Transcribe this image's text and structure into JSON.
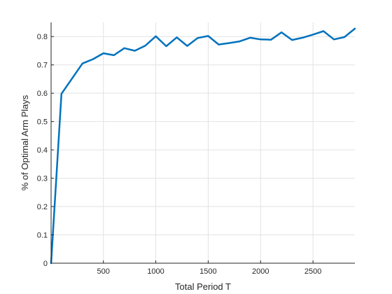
{
  "chart_data": {
    "type": "line",
    "title": "",
    "xlabel": "Total Period T",
    "ylabel": "% of Optimal Arm Plays",
    "xlim": [
      1,
      2900
    ],
    "ylim": [
      0,
      0.85
    ],
    "xticks": [
      500,
      1000,
      1500,
      2000,
      2500
    ],
    "xtick_labels": [
      "500",
      "1000",
      "1500",
      "2000",
      "2500"
    ],
    "yticks": [
      0,
      0.1,
      0.2,
      0.3,
      0.4,
      0.5,
      0.6,
      0.7,
      0.8
    ],
    "ytick_labels": [
      "0",
      "0.1",
      "0.2",
      "0.3",
      "0.4",
      "0.5",
      "0.6",
      "0.7",
      "0.8"
    ],
    "grid": true,
    "legend": "none",
    "series": [
      {
        "color": "#0072BD",
        "x": [
          1,
          100,
          300,
          400,
          500,
          600,
          700,
          800,
          900,
          1000,
          1100,
          1200,
          1300,
          1400,
          1500,
          1600,
          1700,
          1800,
          1900,
          2000,
          2100,
          2200,
          2300,
          2400,
          2500,
          2600,
          2700,
          2800,
          2900
        ],
        "y": [
          0,
          0.598,
          0.705,
          0.72,
          0.741,
          0.734,
          0.759,
          0.75,
          0.768,
          0.801,
          0.766,
          0.797,
          0.767,
          0.795,
          0.802,
          0.772,
          0.777,
          0.783,
          0.796,
          0.79,
          0.789,
          0.815,
          0.788,
          0.796,
          0.807,
          0.819,
          0.79,
          0.798,
          0.828
        ]
      }
    ]
  }
}
